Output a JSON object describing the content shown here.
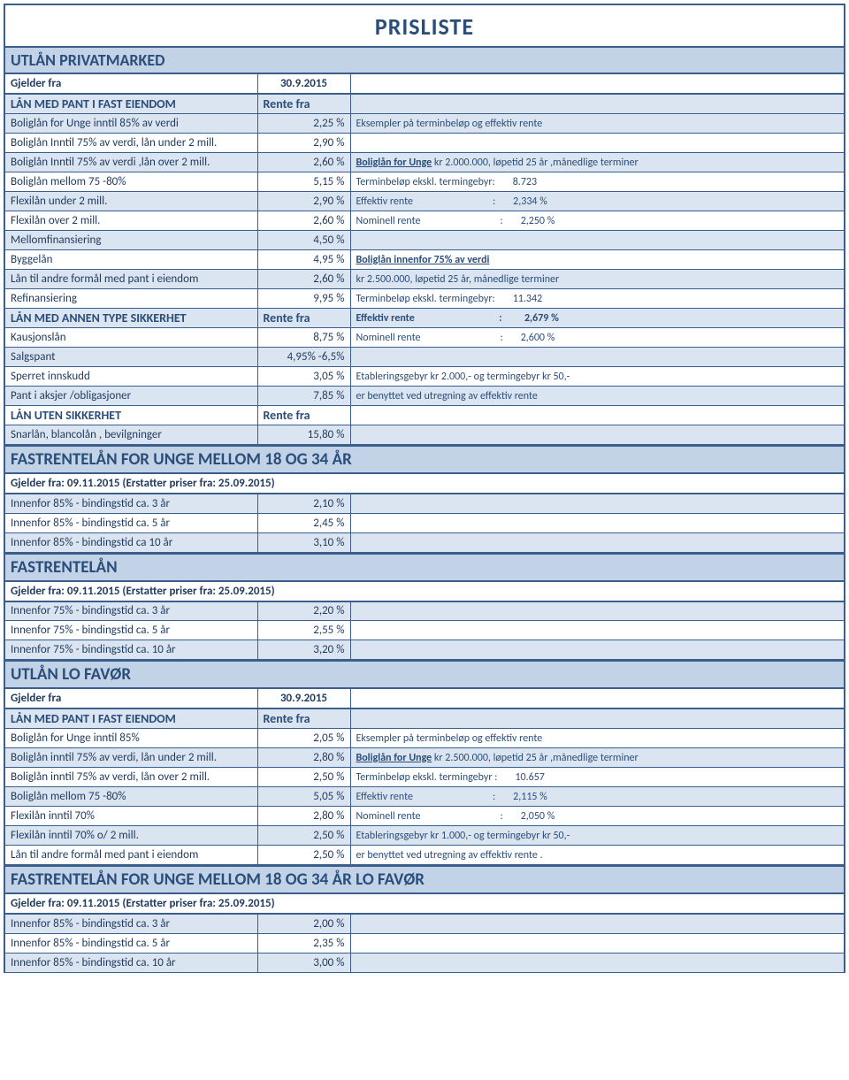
{
  "title": "PRISLISTE",
  "s1": {
    "header": "UTLÅN PRIVATMARKED",
    "gjelderLabel": "Gjelder fra",
    "gjelderDate": "30.9.2015",
    "sub1Label": "LÅN MED PANT I FAST EIENDOM",
    "sub1Rate": "Rente fra",
    "rows": [
      {
        "label": "Boliglån for Unge inntil 85% av verdi",
        "rate": "2,25 %",
        "note": "Eksempler på terminbeløp og effektiv rente",
        "band": true
      },
      {
        "label": "Boliglån Inntil 75% av verdi, lån under 2 mill.",
        "rate": "2,90 %",
        "note": "",
        "band": false
      },
      {
        "label": "Boliglån Inntil 75% av verdi ,lån over 2 mill.",
        "rate": "2,60 %",
        "noteParts": {
          "prefix": "Boliglån for Unge",
          "suffix": " kr 2.000.000, løpetid 25 år ,månedlige terminer"
        },
        "band": true
      },
      {
        "label": "Boliglån mellom 75 -80%",
        "rate": "5,15 %",
        "kv": {
          "l": "Terminbeløp ekskl. termingebyr:",
          "v": "8.723"
        },
        "band": false
      },
      {
        "label": "Flexilån under 2 mill.",
        "rate": "2,90 %",
        "kv": {
          "l": "Effektiv rente",
          "sep": ":",
          "v": "2,334 %"
        },
        "band": true
      },
      {
        "label": "Flexilån over 2 mill.",
        "rate": "2,60 %",
        "kv": {
          "l": "Nominell rente",
          "sep": ":",
          "v": "2,250 %"
        },
        "band": false
      },
      {
        "label": "Mellomfinansiering",
        "rate": "4,50 %",
        "note": "",
        "band": true
      },
      {
        "label": "Byggelån",
        "rate": "4,95 %",
        "noteUL": "Boliglån innenfor 75% av verdi",
        "band": false
      },
      {
        "label": "Lån til andre formål med pant i eiendom",
        "rate": "2,60 %",
        "note": "kr 2.500.000, løpetid 25 år, månedlige terminer",
        "band": true
      },
      {
        "label": "Refinansiering",
        "rate": "9,95 %",
        "kv": {
          "l": "Terminbeløp ekskl. termingebyr:",
          "v": "11.342"
        },
        "band": false
      }
    ],
    "sub2Label": "LÅN MED ANNEN TYPE SIKKERHET",
    "sub2Rate": "Rente fra",
    "sub2kv": {
      "l": "Effektiv rente",
      "sep": ":",
      "v": "2,679 %"
    },
    "rows2": [
      {
        "label": "Kausjonslån",
        "rate": "8,75 %",
        "kv": {
          "l": "Nominell rente",
          "sep": ":",
          "v": "2,600 %"
        },
        "band": false
      },
      {
        "label": "Salgspant",
        "rate": "4,95% -6,5%",
        "note": "",
        "band": true
      },
      {
        "label": "Sperret innskudd",
        "rate": "3,05 %",
        "note": "Etableringsgebyr kr 2.000,- og termingebyr kr 50,-",
        "band": false
      },
      {
        "label": "Pant i aksjer /obligasjoner",
        "rate": "7,85 %",
        "note": "er benyttet ved utregning av effektiv rente",
        "band": true
      }
    ],
    "sub3Label": "LÅN UTEN SIKKERHET",
    "sub3Rate": "Rente fra",
    "rows3": [
      {
        "label": "Snarlån, blancolån , bevilgninger",
        "rate": "15,80 %",
        "note": "",
        "band": true
      }
    ]
  },
  "s2": {
    "header": "FASTRENTELÅN FOR UNGE MELLOM 18 OG 34 ÅR",
    "sub": "Gjelder fra: 09.11.2015 (Erstatter priser fra: 25.09.2015)",
    "rows": [
      {
        "label": "Innenfor 85% - bindingstid ca. 3 år",
        "rate": "2,10 %",
        "band": true
      },
      {
        "label": "Innenfor 85% - bindingstid ca. 5 år",
        "rate": "2,45 %",
        "band": false
      },
      {
        "label": "Innenfor 85% - bindingstid ca 10 år",
        "rate": "3,10 %",
        "band": true
      }
    ]
  },
  "s3": {
    "header": "FASTRENTELÅN",
    "sub": "Gjelder fra: 09.11.2015 (Erstatter priser fra: 25.09.2015)",
    "rows": [
      {
        "label": "Innenfor 75% - bindingstid ca. 3 år",
        "rate": "2,20 %",
        "band": true
      },
      {
        "label": "Innenfor 75% - bindingstid ca. 5 år",
        "rate": "2,55 %",
        "band": false
      },
      {
        "label": "Innenfor 75% - bindingstid ca. 10 år",
        "rate": "3,20 %",
        "band": true
      }
    ]
  },
  "s4": {
    "header": "UTLÅN  LO FAVØR",
    "gjelderLabel": "Gjelder fra",
    "gjelderDate": "30.9.2015",
    "sub1Label": "LÅN MED PANT I FAST EIENDOM",
    "sub1Rate": "Rente fra",
    "rows": [
      {
        "label": "Boliglån for Unge inntil 85%",
        "rate": "2,05 %",
        "note": "Eksempler på terminbeløp og effektiv rente",
        "band": false
      },
      {
        "label": "Boliglån inntil 75% av verdi, lån under 2 mill.",
        "rate": "2,80 %",
        "noteParts": {
          "prefix": "Boliglån for Unge",
          "suffix": " kr 2.500.000, løpetid 25 år ,månedlige terminer"
        },
        "band": true
      },
      {
        "label": "Boliglån inntil 75% av verdi, lån over 2 mill.",
        "rate": "2,50 %",
        "kv": {
          "l": "Terminbeløp ekskl. termingebyr  :",
          "v": "10.657"
        },
        "band": false
      },
      {
        "label": "Boliglån mellom 75 -80%",
        "rate": "5,05 %",
        "kv": {
          "l": "Effektiv rente",
          "sep": ":",
          "v": "2,115 %"
        },
        "band": true
      },
      {
        "label": "Flexilån inntil 70%",
        "rate": "2,80 %",
        "kv": {
          "l": "Nominell rente",
          "sep": ":",
          "v": "2,050 %"
        },
        "band": false
      },
      {
        "label": "Flexilån inntil 70% o/ 2 mill.",
        "rate": "2,50 %",
        "note": "Etableringsgebyr kr 1.000,- og termingebyr kr 50,-",
        "band": true
      },
      {
        "label": "Lån til andre formål med pant i eiendom",
        "rate": "2,50 %",
        "note": "er benyttet ved utregning av effektiv rente .",
        "band": false
      }
    ]
  },
  "s5": {
    "header": "FASTRENTELÅN FOR UNGE MELLOM 18 OG 34 ÅR LO FAVØR",
    "sub": "Gjelder fra: 09.11.2015 (Erstatter priser fra: 25.09.2015)",
    "rows": [
      {
        "label": "Innenfor 85% - bindingstid ca. 3 år",
        "rate": "2,00 %",
        "band": true
      },
      {
        "label": "Innenfor 85% - bindingstid ca. 5 år",
        "rate": "2,35 %",
        "band": false
      },
      {
        "label": "Innenfor 85% - bindingstid ca. 10 år",
        "rate": "3,00 %",
        "band": true
      }
    ]
  },
  "colors": {
    "border": "#3b5e8c",
    "headerBg": "#c3d3e7",
    "bandBg": "#dbe5f1",
    "textColor": "#2a4d7a"
  }
}
